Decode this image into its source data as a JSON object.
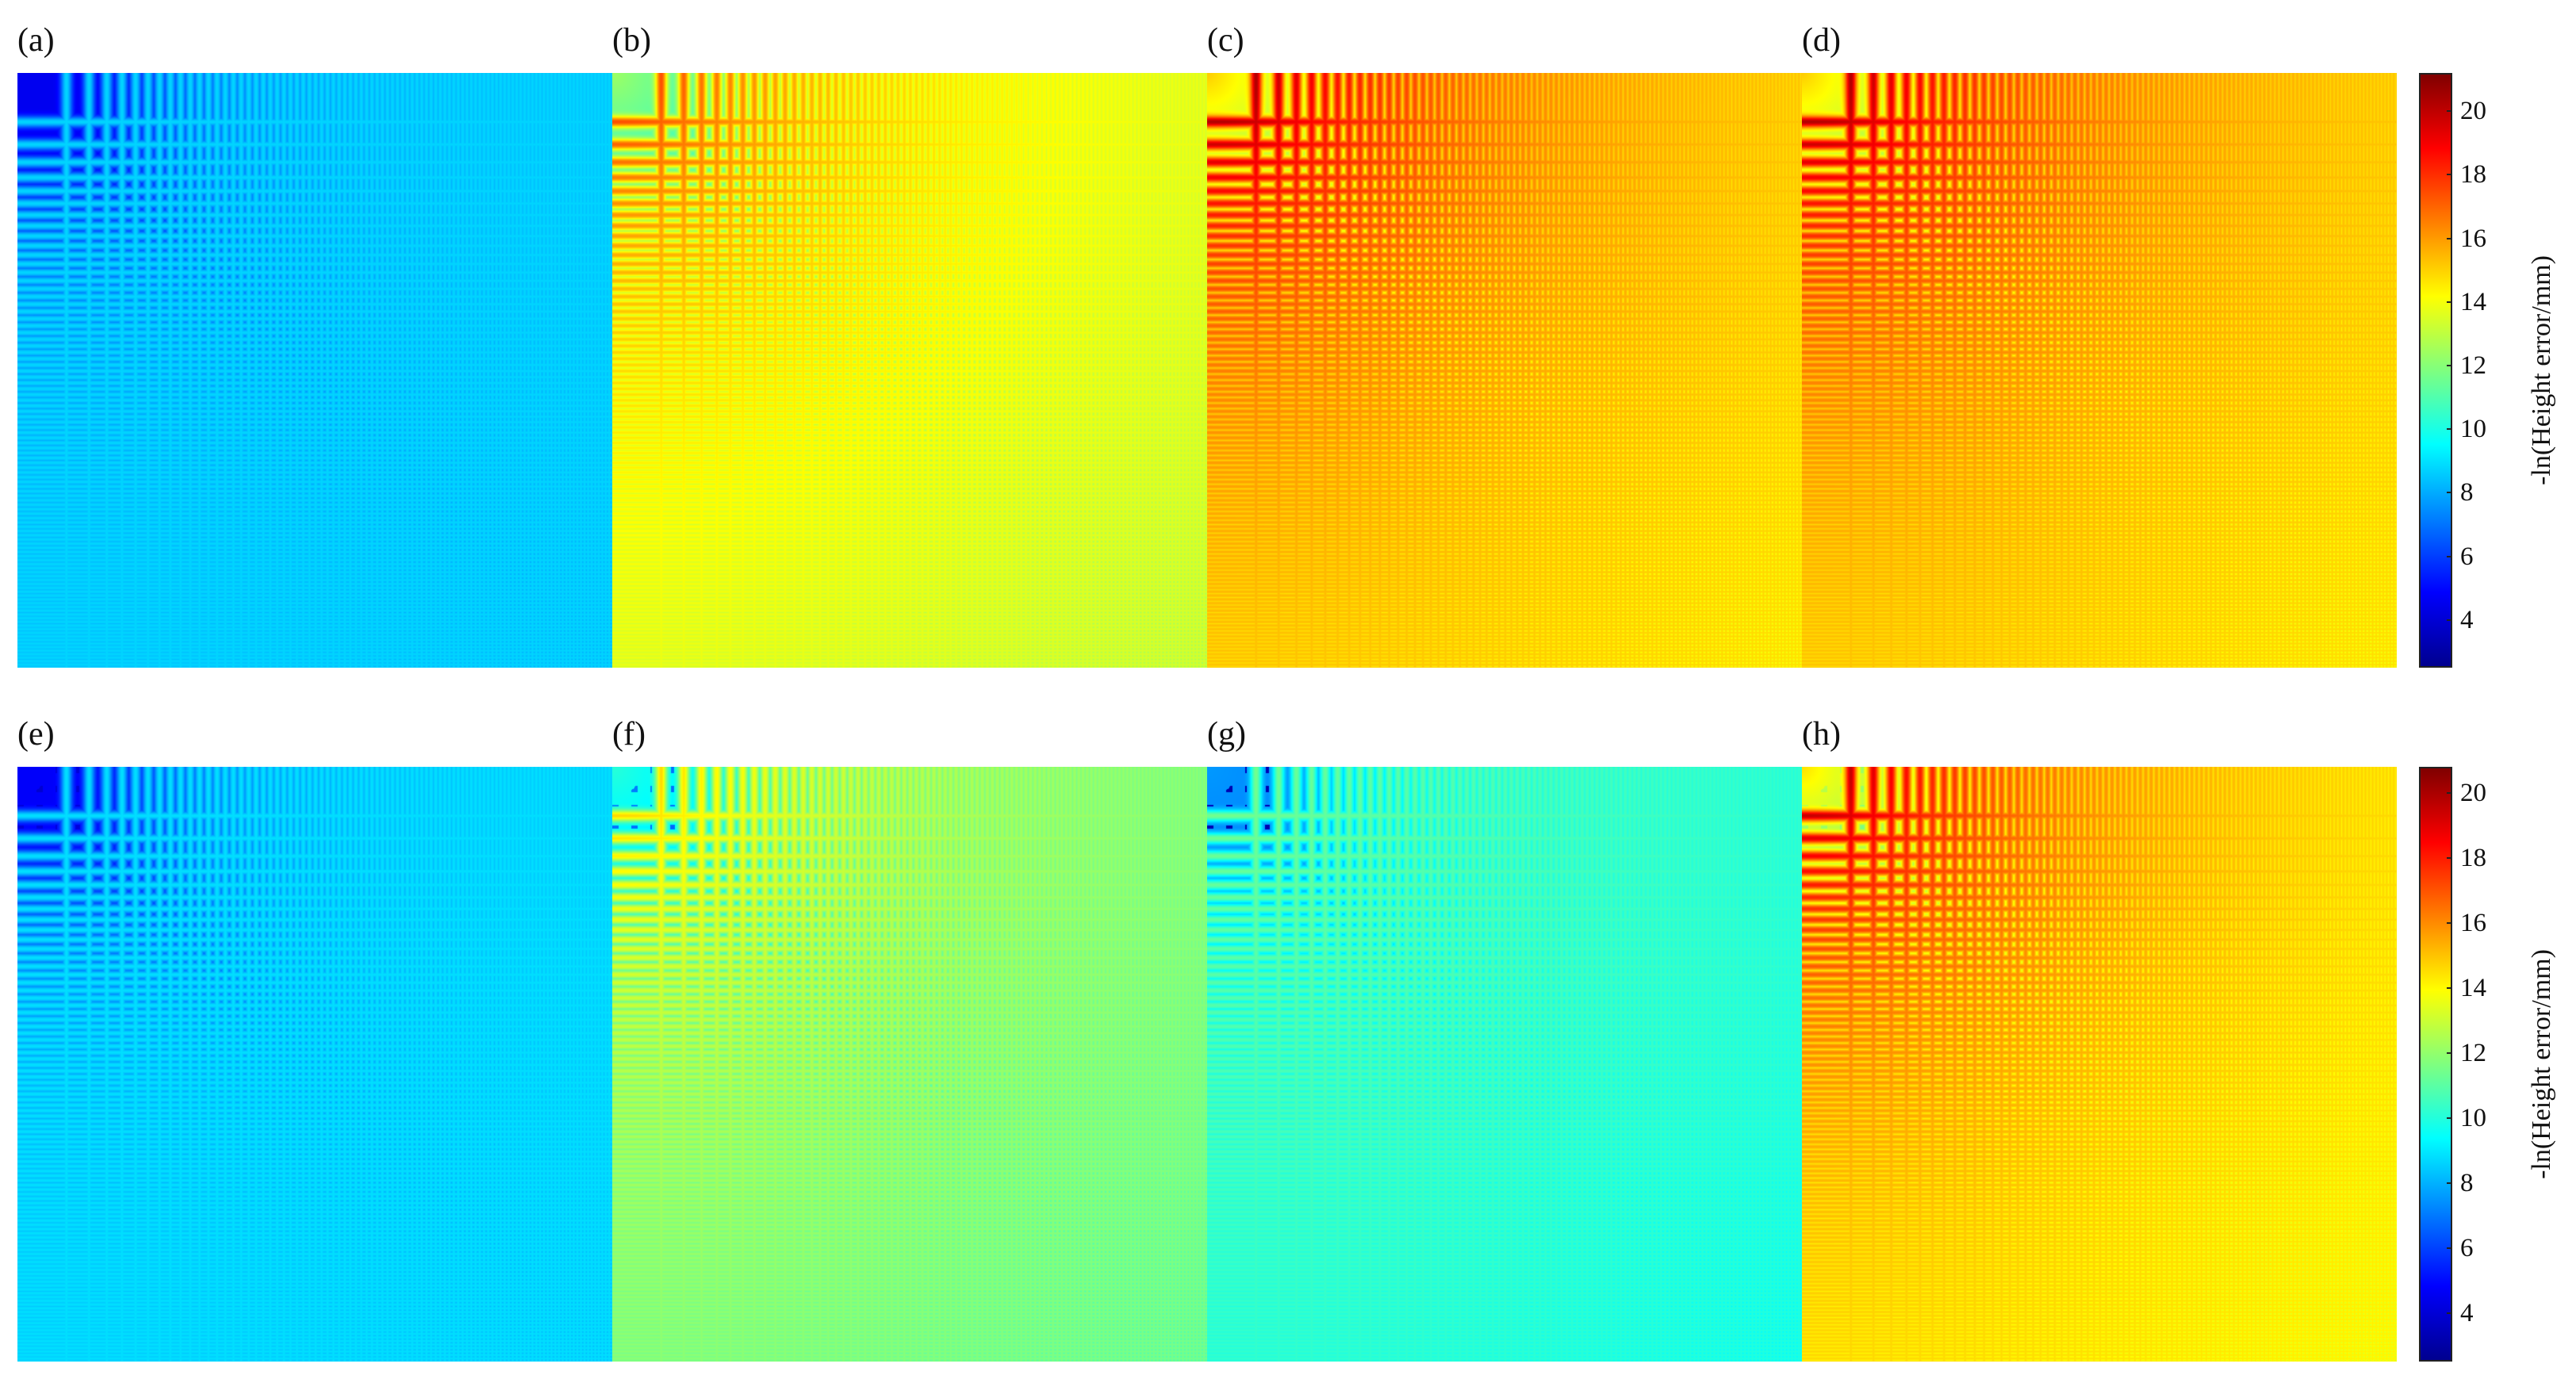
{
  "chart_data": [
    {
      "type": "heatmap",
      "rows": [
        {
          "panels": [
            {
              "label": "(a)",
              "style": "a"
            },
            {
              "label": "(b)",
              "style": "b"
            },
            {
              "label": "(c)",
              "style": "c"
            },
            {
              "label": "(d)",
              "style": "d"
            }
          ],
          "colorbar": {
            "label": "-ln(Height error/mm)",
            "range": [
              2.5,
              21.2
            ],
            "ticks": [
              "4",
              "6",
              "8",
              "10",
              "12",
              "14",
              "16",
              "18",
              "20"
            ]
          }
        },
        {
          "panels": [
            {
              "label": "(e)",
              "style": "e"
            },
            {
              "label": "(f)",
              "style": "f"
            },
            {
              "label": "(g)",
              "style": "g"
            },
            {
              "label": "(h)",
              "style": "h"
            }
          ],
          "colorbar": {
            "label": "-ln(Height error/mm)",
            "range": [
              2.5,
              20.8
            ],
            "ticks": [
              "4",
              "6",
              "8",
              "10",
              "12",
              "14",
              "16",
              "18",
              "20"
            ]
          }
        }
      ],
      "colormap": "jet"
    }
  ]
}
